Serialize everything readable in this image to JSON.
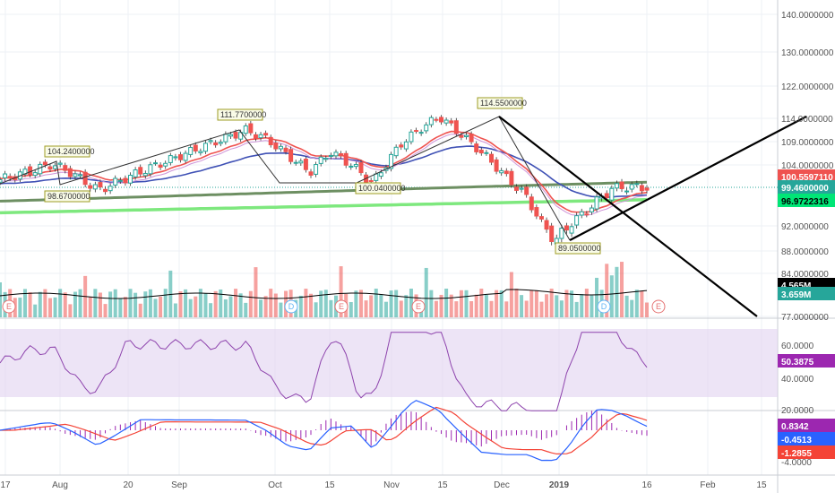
{
  "chart_data": {
    "type": "candlestick",
    "x_axis": {
      "ticks": [
        "17",
        "Aug",
        "20",
        "Sep",
        "Oct",
        "15",
        "Nov",
        "15",
        "Dec",
        "2019",
        "16",
        "Feb",
        "15"
      ]
    },
    "price_panel": {
      "axis_ticks": [
        "140.0000000",
        "130.0000000",
        "122.0000000",
        "114.0000000",
        "109.0000000",
        "104.0000000",
        "99.4600000",
        "96.9722316",
        "92.0000000",
        "88.0000000",
        "84.0000000",
        "77.0000000"
      ],
      "annotations": [
        "104.2400000",
        "98.6700000",
        "111.7700000",
        "100.0400000",
        "114.5500000",
        "89.0500000"
      ],
      "current_price": "99.4600000",
      "ma_value": "96.9722316",
      "obscured_label": "100.5597110",
      "colors": {
        "up": "#26a69a",
        "down": "#ef5350",
        "ma_red": "#ef5350",
        "ma_blue": "#3f51b5",
        "ma_olive": "#7a9a6a",
        "ma_green": "#5ce65c"
      }
    },
    "volume": {
      "current_label": "4.565M",
      "obscured_label": "3.659M",
      "markers": [
        "E",
        "D",
        "E",
        "E",
        "D",
        "E"
      ]
    },
    "rsi": {
      "axis_ticks": [
        "60.0000",
        "40.0000",
        "20.0000"
      ],
      "current_label": "50.3875",
      "color": "#9c27b0"
    },
    "macd": {
      "axis_ticks": [
        "-4.0000"
      ],
      "labels": [
        "0.8342",
        "-0.4513",
        "-1.2855"
      ],
      "colors": {
        "hist": "#9c27b0",
        "macd": "#2962ff",
        "signal": "#f44336"
      }
    }
  }
}
